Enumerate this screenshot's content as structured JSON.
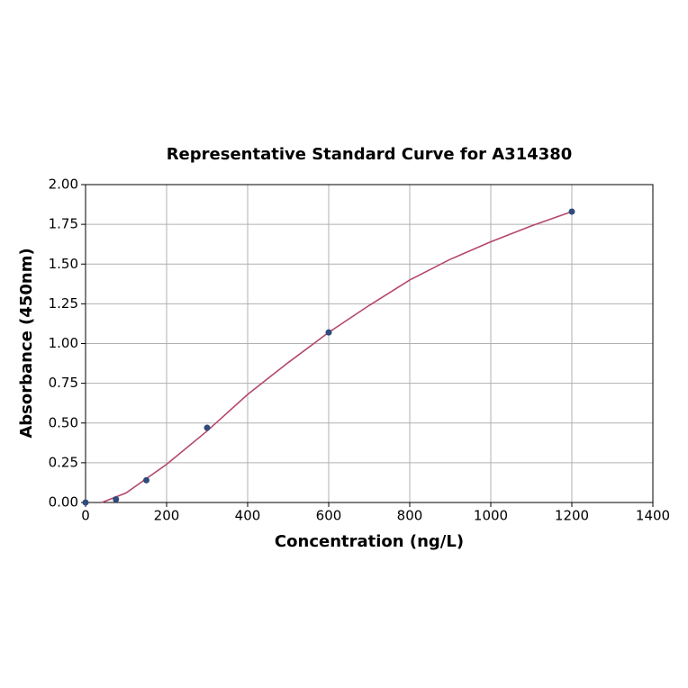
{
  "chart_data": {
    "type": "scatter",
    "title": "Representative Standard Curve for A314380",
    "x_label": "Concentration (ng/L)",
    "y_label": "Absorbance (450nm)",
    "xlim": [
      0,
      1400
    ],
    "xticks": [
      0,
      200,
      400,
      600,
      800,
      1000,
      1200,
      1400
    ],
    "ylim": [
      0,
      2
    ],
    "yticks": [
      {
        "value": 0,
        "label": "0.00"
      },
      {
        "value": 0.25,
        "label": "0.25"
      },
      {
        "value": 0.5,
        "label": "0.50"
      },
      {
        "value": 0.75,
        "label": "0.75"
      },
      {
        "value": 1,
        "label": "1.00"
      },
      {
        "value": 1.25,
        "label": "1.25"
      },
      {
        "value": 1.5,
        "label": "1.50"
      },
      {
        "value": 1.75,
        "label": "1.75"
      },
      {
        "value": 2,
        "label": "2.00"
      }
    ],
    "grid": true,
    "series": [
      {
        "type": "line",
        "color": "#b5476a",
        "x": [
          40,
          100,
          200,
          300,
          400,
          500,
          600,
          700,
          800,
          900,
          1000,
          1100,
          1200
        ],
        "values": [
          0,
          0.06,
          0.24,
          0.45,
          0.68,
          0.88,
          1.07,
          1.24,
          1.4,
          1.53,
          1.64,
          1.74,
          1.83
        ]
      },
      {
        "type": "scatter",
        "color": "#2f4b7c",
        "x": [
          0,
          75,
          150,
          300,
          600,
          1200
        ],
        "values": [
          0,
          0.02,
          0.14,
          0.47,
          1.07,
          1.83
        ]
      }
    ]
  }
}
